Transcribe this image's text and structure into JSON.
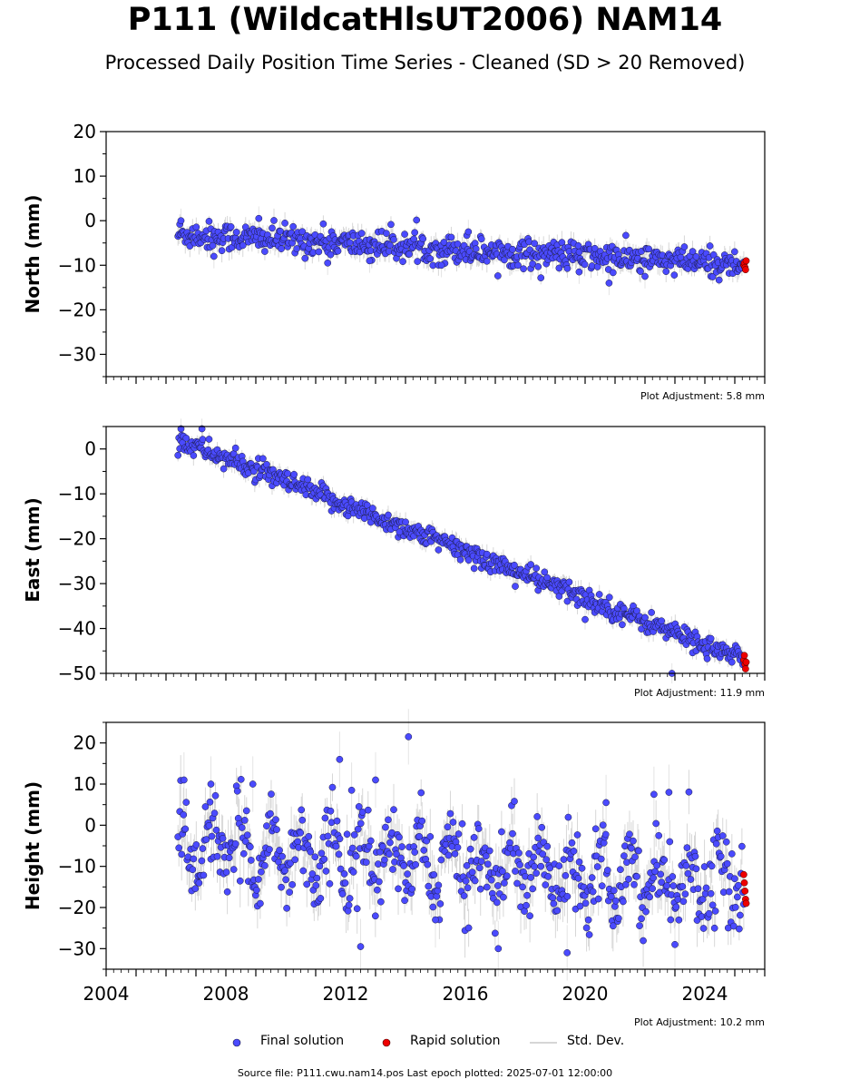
{
  "header": {
    "title": "P111 (WildcatHlsUT2006) NAM14",
    "subtitle": "Processed Daily Position Time Series - Cleaned (SD > 20 Removed)"
  },
  "colors": {
    "final": "#4a4aff",
    "final_edge": "#1a1a40",
    "rapid": "#ee0000",
    "std": "#b8b8b8"
  },
  "legend": {
    "final": "Final solution",
    "rapid": "Rapid solution",
    "std": "Std. Dev."
  },
  "footer": {
    "source": "Source file: P111.cwu.nam14.pos  Last epoch plotted: 2025-07-01 12:00:00"
  },
  "chart_data": [
    {
      "type": "scatter",
      "ylabel": "North (mm)",
      "ylim": [
        -35,
        20
      ],
      "yticks": [
        20,
        10,
        0,
        -10,
        -20,
        -30
      ],
      "xlim": [
        2004,
        2026
      ],
      "adjustment": "Plot Adjustment: 5.8 mm",
      "final_trend": [
        [
          2006.4,
          -3.0
        ],
        [
          2025.3,
          -10.0
        ]
      ],
      "final_scatter_mm": 1.6,
      "std_mm": 1.8,
      "final_outliers": [
        [
          2006.5,
          0.0
        ],
        [
          2007.6,
          -8.0
        ],
        [
          2009.1,
          0.5
        ],
        [
          2011.4,
          -9.5
        ],
        [
          2012.8,
          -9.0
        ],
        [
          2015.2,
          -10.0
        ],
        [
          2016.1,
          -2.5
        ],
        [
          2019.8,
          -11.5
        ],
        [
          2020.8,
          -14.0
        ],
        [
          2022.0,
          -12.5
        ]
      ],
      "rapid": [
        [
          2025.3,
          -10.0
        ],
        [
          2025.32,
          -9.5
        ],
        [
          2025.34,
          -10.5
        ],
        [
          2025.36,
          -11.0
        ],
        [
          2025.38,
          -9.0
        ]
      ]
    },
    {
      "type": "scatter",
      "ylabel": "East (mm)",
      "ylim": [
        -50,
        5
      ],
      "yticks": [
        0,
        -10,
        -20,
        -30,
        -40,
        -50
      ],
      "xlim": [
        2004,
        2026
      ],
      "adjustment": "Plot Adjustment: 11.9 mm",
      "final_trend": [
        [
          2006.4,
          2.0
        ],
        [
          2025.3,
          -47.0
        ]
      ],
      "final_scatter_mm": 1.2,
      "std_mm": 1.5,
      "final_outliers": [
        [
          2006.5,
          4.5
        ],
        [
          2007.2,
          4.5
        ],
        [
          2013.8,
          -18.5
        ],
        [
          2020.0,
          -38.0
        ],
        [
          2022.9,
          -50.0
        ]
      ],
      "rapid": [
        [
          2025.3,
          -47.0
        ],
        [
          2025.32,
          -46.0
        ],
        [
          2025.34,
          -48.0
        ],
        [
          2025.36,
          -49.0
        ],
        [
          2025.38,
          -47.5
        ]
      ]
    },
    {
      "type": "scatter",
      "ylabel": "Height (mm)",
      "ylim": [
        -35,
        25
      ],
      "yticks": [
        20,
        10,
        0,
        -10,
        -20,
        -30
      ],
      "xlim": [
        2004,
        2026
      ],
      "xticks": [
        2004,
        2008,
        2012,
        2016,
        2020,
        2024
      ],
      "adjustment": "Plot Adjustment: 10.2 mm",
      "final_trend": [
        [
          2006.4,
          -5.0
        ],
        [
          2025.3,
          -14.0
        ]
      ],
      "seasonal_amplitude_mm": 6,
      "final_scatter_mm": 4.5,
      "std_mm": 4.5,
      "final_outliers": [
        [
          2006.6,
          11.0
        ],
        [
          2007.5,
          10.0
        ],
        [
          2008.9,
          10.0
        ],
        [
          2011.8,
          16.0
        ],
        [
          2012.2,
          8.5
        ],
        [
          2012.5,
          -29.5
        ],
        [
          2013.0,
          11.0
        ],
        [
          2014.1,
          21.5
        ],
        [
          2015.0,
          -23.0
        ],
        [
          2017.1,
          -30.0
        ],
        [
          2019.4,
          -31.0
        ],
        [
          2020.7,
          5.5
        ],
        [
          2022.3,
          7.5
        ],
        [
          2022.8,
          8.0
        ],
        [
          2023.0,
          -29.0
        ]
      ],
      "rapid": [
        [
          2025.3,
          -12.0
        ],
        [
          2025.32,
          -14.0
        ],
        [
          2025.34,
          -16.0
        ],
        [
          2025.36,
          -18.0
        ],
        [
          2025.38,
          -19.0
        ]
      ]
    }
  ]
}
